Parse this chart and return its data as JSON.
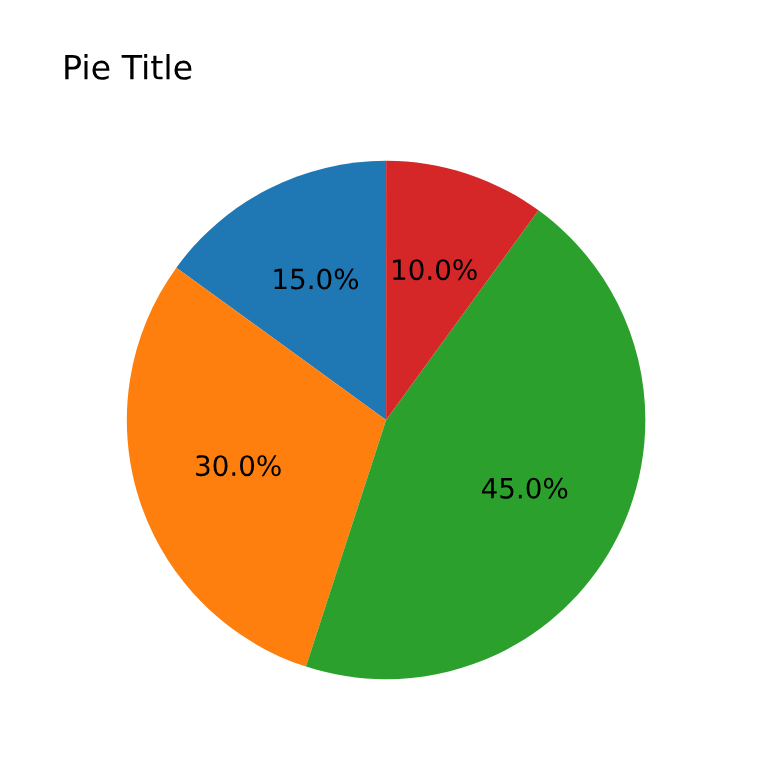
{
  "chart_data": {
    "type": "pie",
    "title": "Pie Title",
    "categories": [
      null,
      null,
      null,
      null
    ],
    "values": [
      15,
      30,
      45,
      10
    ],
    "value_labels": [
      "15.0%",
      "30.0%",
      "45.0%",
      "10.0%"
    ],
    "colors": [
      "#1f77b4",
      "#ff7f0e",
      "#2ca02c",
      "#d62728"
    ]
  }
}
